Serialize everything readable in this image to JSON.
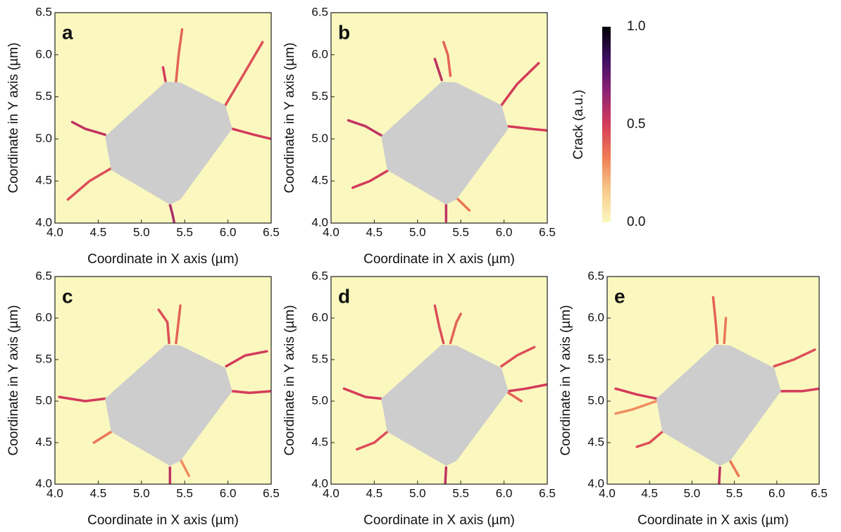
{
  "chart_data": [
    {
      "type": "crack-map",
      "label": "a",
      "xlabel": "Coordinate in X axis (µm)",
      "ylabel": "Coordinate in Y axis (µm)",
      "xlim": [
        4.0,
        6.5
      ],
      "ylim": [
        4.0,
        6.5
      ],
      "xticks": [
        {
          "value": 4,
          "label": "4.0"
        },
        4.5,
        {
          "value": 5,
          "label": "5.0"
        },
        5.5,
        {
          "value": 6,
          "label": "6.0"
        },
        6.5
      ],
      "yticks": [
        {
          "value": 4,
          "label": "4.0"
        },
        4.5,
        {
          "value": 5,
          "label": "5.0"
        },
        5.5,
        {
          "value": 6,
          "label": "6.0"
        },
        6.5
      ],
      "particle": {
        "color": "#cdcdcd",
        "x": [
          4.58,
          5.28,
          5.45,
          5.97,
          6.05,
          5.45,
          5.33,
          4.65
        ],
        "y": [
          5.03,
          5.68,
          5.67,
          5.4,
          5.12,
          4.28,
          4.22,
          4.63
        ]
      },
      "cracks": [
        {
          "x": [
            4.58,
            4.35,
            4.2
          ],
          "y": [
            5.05,
            5.12,
            5.2
          ],
          "value": 0.55
        },
        {
          "x": [
            4.65,
            4.4,
            4.15
          ],
          "y": [
            4.65,
            4.5,
            4.28
          ],
          "value": 0.45
        },
        {
          "x": [
            5.28,
            5.25
          ],
          "y": [
            5.68,
            5.85
          ],
          "value": 0.5
        },
        {
          "x": [
            5.4,
            5.43,
            5.47
          ],
          "y": [
            5.68,
            6.0,
            6.3
          ],
          "value": 0.4
        },
        {
          "x": [
            5.97,
            6.2,
            6.4
          ],
          "y": [
            5.4,
            5.8,
            6.15
          ],
          "value": 0.45
        },
        {
          "x": [
            6.05,
            6.3,
            6.5
          ],
          "y": [
            5.12,
            5.05,
            5.0
          ],
          "value": 0.5
        },
        {
          "x": [
            5.33,
            5.36,
            5.38
          ],
          "y": [
            4.22,
            4.1,
            4.0
          ],
          "value": 0.6
        }
      ]
    },
    {
      "type": "crack-map",
      "label": "b",
      "xlabel": "Coordinate in X axis (µm)",
      "ylabel": "Coordinate in Y axis (µm)",
      "xlim": [
        4.0,
        6.5
      ],
      "ylim": [
        4.0,
        6.5
      ],
      "xticks": [
        {
          "value": 4,
          "label": "4.0"
        },
        4.5,
        {
          "value": 5,
          "label": "5.0"
        },
        5.5,
        {
          "value": 6,
          "label": "6.0"
        },
        6.5
      ],
      "yticks": [
        {
          "value": 4,
          "label": "4.0"
        },
        4.5,
        {
          "value": 5,
          "label": "5.0"
        },
        5.5,
        {
          "value": 6,
          "label": "6.0"
        },
        6.5
      ],
      "particle": {
        "color": "#cdcdcd",
        "x": [
          4.58,
          5.28,
          5.45,
          5.97,
          6.05,
          5.45,
          5.33,
          4.65
        ],
        "y": [
          5.03,
          5.68,
          5.67,
          5.4,
          5.12,
          4.28,
          4.22,
          4.63
        ]
      },
      "cracks": [
        {
          "x": [
            4.6,
            4.4,
            4.2
          ],
          "y": [
            5.03,
            5.15,
            5.22
          ],
          "value": 0.55
        },
        {
          "x": [
            4.65,
            4.45,
            4.25
          ],
          "y": [
            4.62,
            4.5,
            4.42
          ],
          "value": 0.5
        },
        {
          "x": [
            5.28,
            5.2
          ],
          "y": [
            5.7,
            5.95
          ],
          "value": 0.55
        },
        {
          "x": [
            5.38,
            5.35,
            5.3
          ],
          "y": [
            5.75,
            6.0,
            6.15
          ],
          "value": 0.4
        },
        {
          "x": [
            5.97,
            6.15,
            6.4
          ],
          "y": [
            5.4,
            5.65,
            5.9
          ],
          "value": 0.5
        },
        {
          "x": [
            6.05,
            6.3,
            6.5
          ],
          "y": [
            5.15,
            5.12,
            5.1
          ],
          "value": 0.5
        },
        {
          "x": [
            5.33,
            5.33
          ],
          "y": [
            4.22,
            4.02
          ],
          "value": 0.55
        },
        {
          "x": [
            5.45,
            5.6
          ],
          "y": [
            4.3,
            4.15
          ],
          "value": 0.35
        }
      ]
    },
    {
      "type": "crack-map",
      "label": "c",
      "xlabel": "Coordinate in X axis (µm)",
      "ylabel": "Coordinate in Y axis (µm)",
      "xlim": [
        4.0,
        6.5
      ],
      "ylim": [
        4.0,
        6.5
      ],
      "xticks": [
        {
          "value": 4,
          "label": "4.0"
        },
        4.5,
        {
          "value": 5,
          "label": "5.0"
        },
        5.5,
        {
          "value": 6,
          "label": "6.0"
        },
        6.5
      ],
      "yticks": [
        {
          "value": 4,
          "label": "4.0"
        },
        4.5,
        {
          "value": 5,
          "label": "5.0"
        },
        5.5,
        {
          "value": 6,
          "label": "6.0"
        },
        6.5
      ],
      "particle": {
        "color": "#cdcdcd",
        "x": [
          4.58,
          5.28,
          5.45,
          5.97,
          6.05,
          5.45,
          5.33,
          4.65
        ],
        "y": [
          5.03,
          5.68,
          5.67,
          5.4,
          5.12,
          4.28,
          4.22,
          4.63
        ]
      },
      "cracks": [
        {
          "x": [
            4.58,
            4.35,
            4.05
          ],
          "y": [
            5.03,
            5.0,
            5.05
          ],
          "value": 0.5
        },
        {
          "x": [
            4.65,
            4.45
          ],
          "y": [
            4.63,
            4.5
          ],
          "value": 0.35
        },
        {
          "x": [
            5.32,
            5.3,
            5.2
          ],
          "y": [
            5.7,
            5.95,
            6.1
          ],
          "value": 0.45
        },
        {
          "x": [
            5.4,
            5.45
          ],
          "y": [
            5.7,
            6.15
          ],
          "value": 0.4
        },
        {
          "x": [
            5.98,
            6.2,
            6.45
          ],
          "y": [
            5.42,
            5.55,
            5.6
          ],
          "value": 0.5
        },
        {
          "x": [
            6.05,
            6.25,
            6.5
          ],
          "y": [
            5.12,
            5.1,
            5.12
          ],
          "value": 0.5
        },
        {
          "x": [
            5.33,
            5.33
          ],
          "y": [
            4.2,
            4.0
          ],
          "value": 0.55
        },
        {
          "x": [
            5.45,
            5.55
          ],
          "y": [
            4.3,
            4.1
          ],
          "value": 0.3
        }
      ]
    },
    {
      "type": "crack-map",
      "label": "d",
      "xlabel": "Coordinate in X axis (µm)",
      "ylabel": "Coordinate in Y axis (µm)",
      "xlim": [
        4.0,
        6.5
      ],
      "ylim": [
        4.0,
        6.5
      ],
      "xticks": [
        {
          "value": 4,
          "label": "4.0"
        },
        4.5,
        {
          "value": 5,
          "label": "5.0"
        },
        5.5,
        {
          "value": 6,
          "label": "6.0"
        },
        6.5
      ],
      "yticks": [
        {
          "value": 4,
          "label": "4.0"
        },
        4.5,
        {
          "value": 5,
          "label": "5.0"
        },
        5.5,
        {
          "value": 6,
          "label": "6.0"
        },
        6.5
      ],
      "particle": {
        "color": "#cdcdcd",
        "x": [
          4.58,
          5.28,
          5.45,
          5.97,
          6.05,
          5.45,
          5.33,
          4.65
        ],
        "y": [
          5.03,
          5.68,
          5.67,
          5.4,
          5.12,
          4.28,
          4.22,
          4.63
        ]
      },
      "cracks": [
        {
          "x": [
            4.58,
            4.4,
            4.15
          ],
          "y": [
            5.03,
            5.05,
            5.15
          ],
          "value": 0.5
        },
        {
          "x": [
            4.65,
            4.5,
            4.3
          ],
          "y": [
            4.63,
            4.5,
            4.42
          ],
          "value": 0.45
        },
        {
          "x": [
            5.3,
            5.25,
            5.2
          ],
          "y": [
            5.7,
            5.9,
            6.15
          ],
          "value": 0.45
        },
        {
          "x": [
            5.38,
            5.45,
            5.5
          ],
          "y": [
            5.7,
            5.95,
            6.05
          ],
          "value": 0.4
        },
        {
          "x": [
            5.97,
            6.15,
            6.35
          ],
          "y": [
            5.42,
            5.55,
            5.65
          ],
          "value": 0.45
        },
        {
          "x": [
            6.05,
            6.25,
            6.5
          ],
          "y": [
            5.12,
            5.15,
            5.2
          ],
          "value": 0.5
        },
        {
          "x": [
            6.05,
            6.2
          ],
          "y": [
            5.1,
            5.0
          ],
          "value": 0.4
        },
        {
          "x": [
            5.33,
            5.32
          ],
          "y": [
            4.2,
            4.0
          ],
          "value": 0.55
        }
      ]
    },
    {
      "type": "crack-map",
      "label": "e",
      "xlabel": "Coordinate in X axis (µm)",
      "ylabel": "Coordinate in Y axis (µm)",
      "xlim": [
        4.0,
        6.5
      ],
      "ylim": [
        4.0,
        6.5
      ],
      "xticks": [
        {
          "value": 4,
          "label": "4.0"
        },
        4.5,
        {
          "value": 5,
          "label": "5.0"
        },
        5.5,
        {
          "value": 6,
          "label": "6.0"
        },
        6.5
      ],
      "yticks": [
        {
          "value": 4,
          "label": "4.0"
        },
        4.5,
        {
          "value": 5,
          "label": "5.0"
        },
        5.5,
        {
          "value": 6,
          "label": "6.0"
        },
        6.5
      ],
      "particle": {
        "color": "#cdcdcd",
        "x": [
          4.58,
          5.28,
          5.45,
          5.97,
          6.05,
          5.45,
          5.33,
          4.65
        ],
        "y": [
          5.03,
          5.68,
          5.67,
          5.4,
          5.12,
          4.28,
          4.22,
          4.63
        ]
      },
      "cracks": [
        {
          "x": [
            4.58,
            4.35,
            4.1
          ],
          "y": [
            5.03,
            5.08,
            5.15
          ],
          "value": 0.5
        },
        {
          "x": [
            4.58,
            4.3,
            4.1
          ],
          "y": [
            5.0,
            4.9,
            4.85
          ],
          "value": 0.3
        },
        {
          "x": [
            4.65,
            4.5,
            4.35
          ],
          "y": [
            4.63,
            4.5,
            4.45
          ],
          "value": 0.45
        },
        {
          "x": [
            5.3,
            5.28,
            5.25
          ],
          "y": [
            5.7,
            5.95,
            6.25
          ],
          "value": 0.4
        },
        {
          "x": [
            5.38,
            5.4
          ],
          "y": [
            5.7,
            6.0
          ],
          "value": 0.35
        },
        {
          "x": [
            5.97,
            6.2,
            6.45
          ],
          "y": [
            5.42,
            5.5,
            5.62
          ],
          "value": 0.45
        },
        {
          "x": [
            6.05,
            6.3,
            6.5
          ],
          "y": [
            5.12,
            5.12,
            5.15
          ],
          "value": 0.5
        },
        {
          "x": [
            5.33,
            5.32
          ],
          "y": [
            4.2,
            4.0
          ],
          "value": 0.55
        },
        {
          "x": [
            5.45,
            5.55
          ],
          "y": [
            4.28,
            4.1
          ],
          "value": 0.35
        }
      ]
    },
    {
      "type": "colorbar",
      "label": "Crack (a.u.)",
      "lim": [
        0,
        1
      ],
      "ticks": [
        {
          "value": 0,
          "label": "0.0"
        },
        {
          "value": 0.5,
          "label": "0.5"
        },
        {
          "value": 1,
          "label": "1.0"
        }
      ],
      "colors": [
        "#fbf8bf",
        "#f6c98a",
        "#ef7d55",
        "#d43b5a",
        "#8f2374",
        "#3d0f63",
        "#000004"
      ]
    }
  ]
}
